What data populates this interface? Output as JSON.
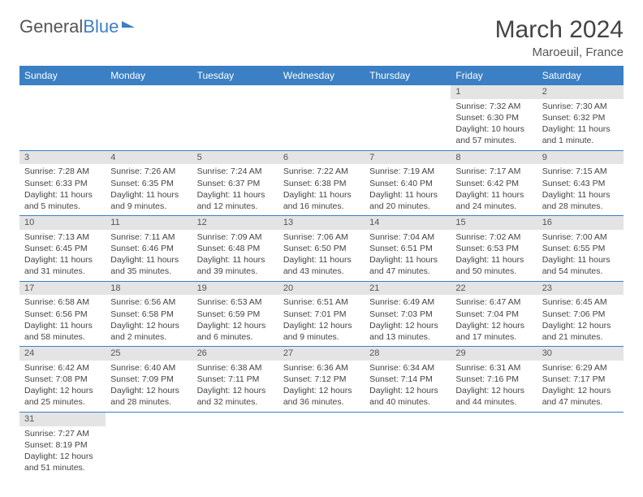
{
  "logo": {
    "text1": "General",
    "text2": "Blue"
  },
  "title": "March 2024",
  "subtitle": "Maroeuil, France",
  "day_headers": [
    "Sunday",
    "Monday",
    "Tuesday",
    "Wednesday",
    "Thursday",
    "Friday",
    "Saturday"
  ],
  "colors": {
    "header_bg": "#3b7fc4",
    "header_text": "#ffffff",
    "daynum_bg": "#e4e4e4",
    "row_border": "#3b7fc4",
    "text": "#444444"
  },
  "weeks": [
    [
      null,
      null,
      null,
      null,
      null,
      {
        "n": "1",
        "sr": "Sunrise: 7:32 AM",
        "ss": "Sunset: 6:30 PM",
        "dl": "Daylight: 10 hours and 57 minutes."
      },
      {
        "n": "2",
        "sr": "Sunrise: 7:30 AM",
        "ss": "Sunset: 6:32 PM",
        "dl": "Daylight: 11 hours and 1 minute."
      }
    ],
    [
      {
        "n": "3",
        "sr": "Sunrise: 7:28 AM",
        "ss": "Sunset: 6:33 PM",
        "dl": "Daylight: 11 hours and 5 minutes."
      },
      {
        "n": "4",
        "sr": "Sunrise: 7:26 AM",
        "ss": "Sunset: 6:35 PM",
        "dl": "Daylight: 11 hours and 9 minutes."
      },
      {
        "n": "5",
        "sr": "Sunrise: 7:24 AM",
        "ss": "Sunset: 6:37 PM",
        "dl": "Daylight: 11 hours and 12 minutes."
      },
      {
        "n": "6",
        "sr": "Sunrise: 7:22 AM",
        "ss": "Sunset: 6:38 PM",
        "dl": "Daylight: 11 hours and 16 minutes."
      },
      {
        "n": "7",
        "sr": "Sunrise: 7:19 AM",
        "ss": "Sunset: 6:40 PM",
        "dl": "Daylight: 11 hours and 20 minutes."
      },
      {
        "n": "8",
        "sr": "Sunrise: 7:17 AM",
        "ss": "Sunset: 6:42 PM",
        "dl": "Daylight: 11 hours and 24 minutes."
      },
      {
        "n": "9",
        "sr": "Sunrise: 7:15 AM",
        "ss": "Sunset: 6:43 PM",
        "dl": "Daylight: 11 hours and 28 minutes."
      }
    ],
    [
      {
        "n": "10",
        "sr": "Sunrise: 7:13 AM",
        "ss": "Sunset: 6:45 PM",
        "dl": "Daylight: 11 hours and 31 minutes."
      },
      {
        "n": "11",
        "sr": "Sunrise: 7:11 AM",
        "ss": "Sunset: 6:46 PM",
        "dl": "Daylight: 11 hours and 35 minutes."
      },
      {
        "n": "12",
        "sr": "Sunrise: 7:09 AM",
        "ss": "Sunset: 6:48 PM",
        "dl": "Daylight: 11 hours and 39 minutes."
      },
      {
        "n": "13",
        "sr": "Sunrise: 7:06 AM",
        "ss": "Sunset: 6:50 PM",
        "dl": "Daylight: 11 hours and 43 minutes."
      },
      {
        "n": "14",
        "sr": "Sunrise: 7:04 AM",
        "ss": "Sunset: 6:51 PM",
        "dl": "Daylight: 11 hours and 47 minutes."
      },
      {
        "n": "15",
        "sr": "Sunrise: 7:02 AM",
        "ss": "Sunset: 6:53 PM",
        "dl": "Daylight: 11 hours and 50 minutes."
      },
      {
        "n": "16",
        "sr": "Sunrise: 7:00 AM",
        "ss": "Sunset: 6:55 PM",
        "dl": "Daylight: 11 hours and 54 minutes."
      }
    ],
    [
      {
        "n": "17",
        "sr": "Sunrise: 6:58 AM",
        "ss": "Sunset: 6:56 PM",
        "dl": "Daylight: 11 hours and 58 minutes."
      },
      {
        "n": "18",
        "sr": "Sunrise: 6:56 AM",
        "ss": "Sunset: 6:58 PM",
        "dl": "Daylight: 12 hours and 2 minutes."
      },
      {
        "n": "19",
        "sr": "Sunrise: 6:53 AM",
        "ss": "Sunset: 6:59 PM",
        "dl": "Daylight: 12 hours and 6 minutes."
      },
      {
        "n": "20",
        "sr": "Sunrise: 6:51 AM",
        "ss": "Sunset: 7:01 PM",
        "dl": "Daylight: 12 hours and 9 minutes."
      },
      {
        "n": "21",
        "sr": "Sunrise: 6:49 AM",
        "ss": "Sunset: 7:03 PM",
        "dl": "Daylight: 12 hours and 13 minutes."
      },
      {
        "n": "22",
        "sr": "Sunrise: 6:47 AM",
        "ss": "Sunset: 7:04 PM",
        "dl": "Daylight: 12 hours and 17 minutes."
      },
      {
        "n": "23",
        "sr": "Sunrise: 6:45 AM",
        "ss": "Sunset: 7:06 PM",
        "dl": "Daylight: 12 hours and 21 minutes."
      }
    ],
    [
      {
        "n": "24",
        "sr": "Sunrise: 6:42 AM",
        "ss": "Sunset: 7:08 PM",
        "dl": "Daylight: 12 hours and 25 minutes."
      },
      {
        "n": "25",
        "sr": "Sunrise: 6:40 AM",
        "ss": "Sunset: 7:09 PM",
        "dl": "Daylight: 12 hours and 28 minutes."
      },
      {
        "n": "26",
        "sr": "Sunrise: 6:38 AM",
        "ss": "Sunset: 7:11 PM",
        "dl": "Daylight: 12 hours and 32 minutes."
      },
      {
        "n": "27",
        "sr": "Sunrise: 6:36 AM",
        "ss": "Sunset: 7:12 PM",
        "dl": "Daylight: 12 hours and 36 minutes."
      },
      {
        "n": "28",
        "sr": "Sunrise: 6:34 AM",
        "ss": "Sunset: 7:14 PM",
        "dl": "Daylight: 12 hours and 40 minutes."
      },
      {
        "n": "29",
        "sr": "Sunrise: 6:31 AM",
        "ss": "Sunset: 7:16 PM",
        "dl": "Daylight: 12 hours and 44 minutes."
      },
      {
        "n": "30",
        "sr": "Sunrise: 6:29 AM",
        "ss": "Sunset: 7:17 PM",
        "dl": "Daylight: 12 hours and 47 minutes."
      }
    ],
    [
      {
        "n": "31",
        "sr": "Sunrise: 7:27 AM",
        "ss": "Sunset: 8:19 PM",
        "dl": "Daylight: 12 hours and 51 minutes."
      },
      null,
      null,
      null,
      null,
      null,
      null
    ]
  ]
}
